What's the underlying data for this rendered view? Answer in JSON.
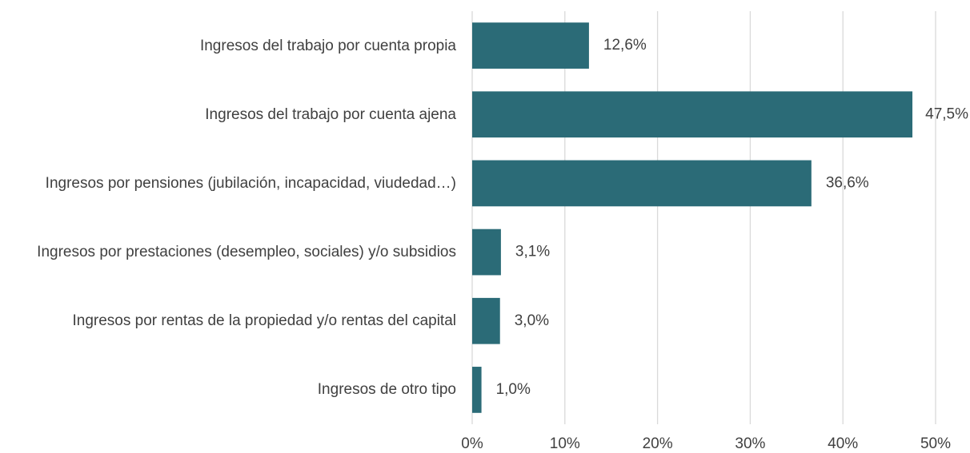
{
  "chart_data": {
    "type": "hbar",
    "categories": [
      "Ingresos del trabajo por cuenta propia",
      "Ingresos del trabajo por cuenta ajena",
      "Ingresos por pensiones (jubilación, incapacidad, viudedad…)",
      "Ingresos por prestaciones (desempleo, sociales) y/o subsidios",
      "Ingresos por rentas de la propiedad y/o rentas del capital",
      "Ingresos de otro tipo"
    ],
    "values": [
      12.6,
      47.5,
      36.6,
      3.1,
      3.0,
      1.0
    ],
    "value_labels": [
      "12,6%",
      "47,5%",
      "36,6%",
      "3,1%",
      "3,0%",
      "1,0%"
    ],
    "color": "#2b6b77",
    "xlim": [
      0,
      50
    ],
    "xticks": [
      {
        "value": 0,
        "label": "0%"
      },
      {
        "value": 10,
        "label": "10%"
      },
      {
        "value": 20,
        "label": "20%"
      },
      {
        "value": 30,
        "label": "30%"
      },
      {
        "value": 40,
        "label": "40%"
      },
      {
        "value": 50,
        "label": "50%"
      }
    ],
    "grid": true
  }
}
